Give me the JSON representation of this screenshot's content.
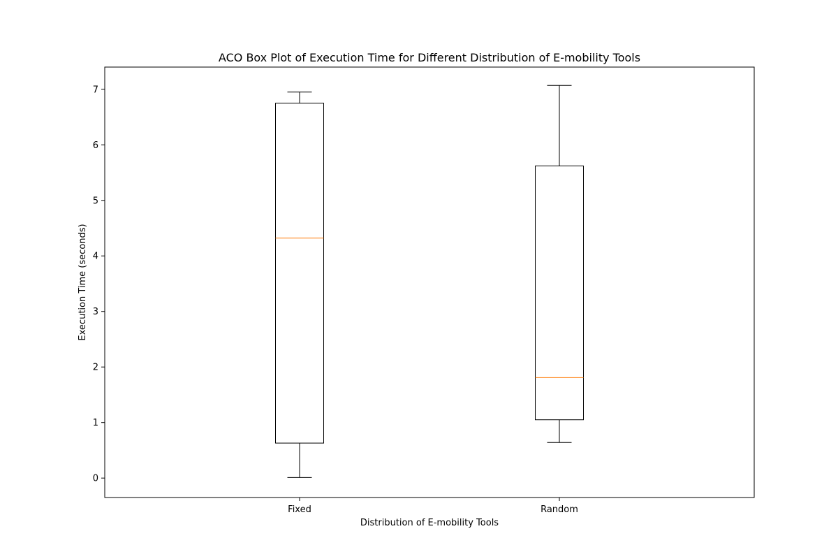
{
  "chart_data": {
    "type": "box",
    "title": "ACO Box Plot of Execution Time for Different Distribution of E-mobility Tools",
    "xlabel": "Distribution of E-mobility Tools",
    "ylabel": "Execution Time (seconds)",
    "categories": [
      "Fixed",
      "Random"
    ],
    "boxes": [
      {
        "name": "Fixed",
        "whisker_low": 0.01,
        "q1": 0.63,
        "median": 4.32,
        "q3": 6.75,
        "whisker_high": 6.95
      },
      {
        "name": "Random",
        "whisker_low": 0.64,
        "q1": 1.05,
        "median": 1.81,
        "q3": 5.62,
        "whisker_high": 7.07
      }
    ],
    "ylim": [
      -0.35,
      7.4
    ],
    "yticks": [
      0,
      1,
      2,
      3,
      4,
      5,
      6,
      7
    ],
    "grid": false,
    "colors": {
      "box": "#000000",
      "median": "#ff7f0e"
    }
  }
}
